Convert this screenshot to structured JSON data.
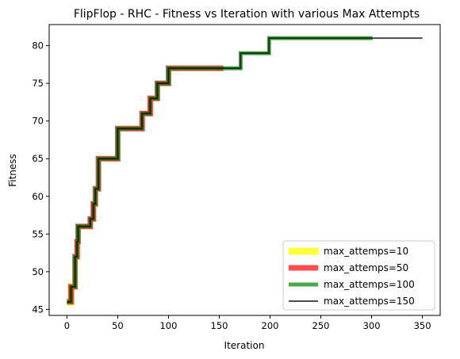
{
  "chart_data": {
    "type": "line",
    "title": "FlipFlop - RHC - Fitness vs Iteration with various Max Attempts",
    "xlabel": "Iteration",
    "ylabel": "Fitness",
    "xlim": [
      -17.5,
      367.5
    ],
    "ylim": [
      44.2,
      82.8
    ],
    "xticks": [
      0,
      50,
      100,
      150,
      200,
      250,
      300,
      350
    ],
    "xtick_labels": [
      "0",
      "50",
      "100",
      "150",
      "200",
      "250",
      "300",
      "350"
    ],
    "yticks": [
      45,
      50,
      55,
      60,
      65,
      70,
      75,
      80
    ],
    "ytick_labels": [
      "45",
      "50",
      "55",
      "60",
      "65",
      "70",
      "75",
      "80"
    ],
    "grid": false,
    "legend_position": "bottom-right",
    "base_steps": [
      [
        0,
        46
      ],
      [
        4,
        48
      ],
      [
        8,
        52
      ],
      [
        10,
        54
      ],
      [
        11,
        56
      ],
      [
        23,
        57
      ],
      [
        26,
        59
      ],
      [
        28,
        61
      ],
      [
        31,
        65
      ],
      [
        50,
        69
      ],
      [
        74,
        71
      ],
      [
        82,
        73
      ],
      [
        89,
        75
      ],
      [
        100,
        77
      ],
      [
        155,
        77
      ],
      [
        171,
        79
      ],
      [
        199,
        81
      ],
      [
        350,
        81
      ]
    ],
    "series": [
      {
        "name": "max_attemps=10",
        "color": "#ffff00",
        "opacity": 0.75,
        "width": 9,
        "x_end": 5
      },
      {
        "name": "max_attemps=50",
        "color": "#ff0000",
        "opacity": 0.7,
        "width": 7,
        "x_end": 154
      },
      {
        "name": "max_attemps=100",
        "color": "#008000",
        "opacity": 0.7,
        "width": 5,
        "x_end": 301
      },
      {
        "name": "max_attemps=150",
        "color": "#000000",
        "opacity": 0.7,
        "width": 2,
        "x_end": 350
      }
    ]
  }
}
